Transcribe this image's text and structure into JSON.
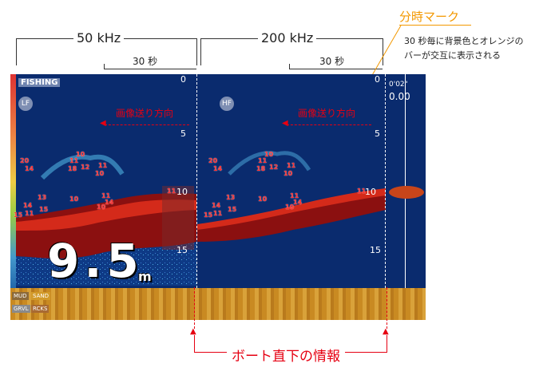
{
  "header": {
    "freq_low": "50 kHz",
    "freq_high": "200 kHz",
    "interval_left": "30 秒",
    "interval_right": "30 秒"
  },
  "callouts": {
    "time_mark_title": "分時マーク",
    "time_mark_desc_line1": "30 秒毎に背景色とオレンジの",
    "time_mark_desc_line2": "バーが交互に表示される",
    "boat_info": "ボート直下の情報"
  },
  "screen": {
    "mode_label": "FISHING",
    "lf_badge": "LF",
    "hf_badge": "HF",
    "scroll_dir_left": "画像送り方向",
    "scroll_dir_right": "画像送り方向",
    "depth_readout": "9.5",
    "depth_unit": "m",
    "time_top": "0'02\"",
    "time_value": "0.00",
    "depth_ticks": [
      "0",
      "5",
      "10",
      "15"
    ],
    "bottom_labels": [
      "MUD",
      "SAND",
      "GRVL",
      "RCKS"
    ],
    "fish_left": [
      "10",
      "11",
      "18",
      "20",
      "14",
      "12",
      "10",
      "11",
      "13",
      "15",
      "10",
      "11",
      "14",
      "11",
      "15",
      "10",
      "14",
      "11",
      "10",
      "16",
      "10",
      "11",
      "12"
    ],
    "fish_right": [
      "10",
      "11",
      "18",
      "20",
      "14",
      "12",
      "10",
      "11",
      "13",
      "15",
      "10",
      "11",
      "14",
      "11",
      "15",
      "10",
      "14",
      "11",
      "10",
      "16",
      "10",
      "11",
      "12"
    ]
  },
  "colors": {
    "accent_orange": "#f39800",
    "accent_red": "#e60012",
    "water": "#0a2b6e",
    "seabed": "#c98a22"
  }
}
